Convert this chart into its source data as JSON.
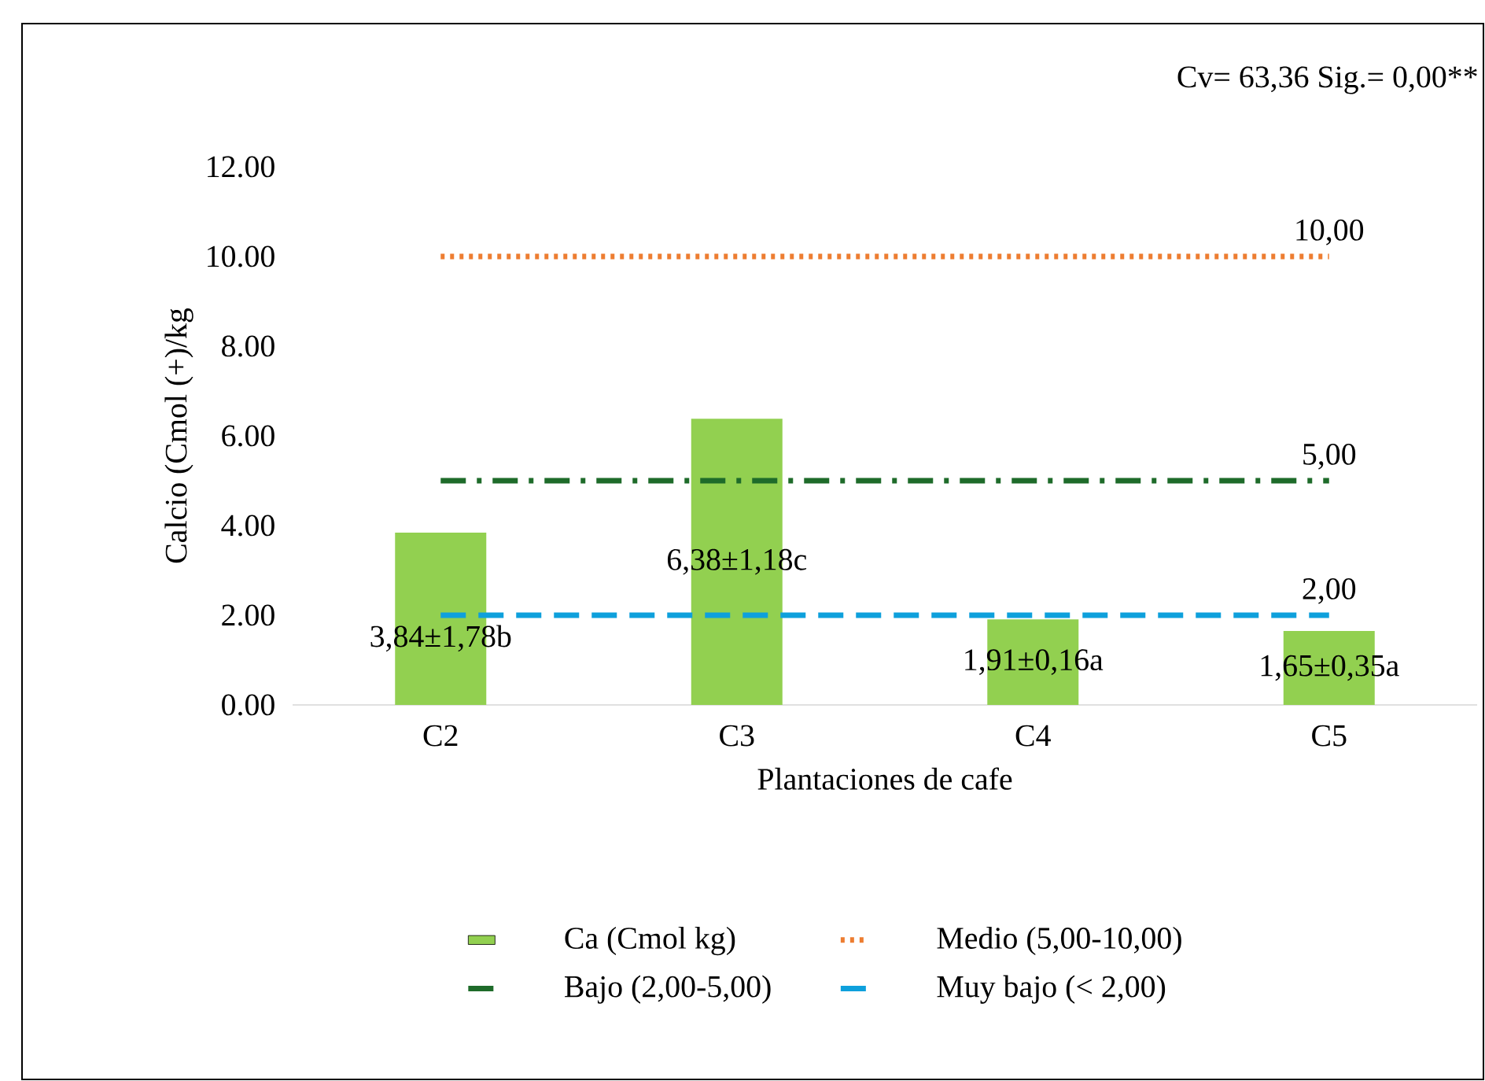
{
  "chart_data": {
    "type": "bar",
    "ylabel": "Calcio (Cmol (+)/kg",
    "xlabel": "Plantaciones de cafe",
    "categories": [
      "C2",
      "C3",
      "C4",
      "C5"
    ],
    "ylim": [
      0,
      12
    ],
    "yticks": [
      {
        "value": 0,
        "label": "0.00"
      },
      {
        "value": 2,
        "label": "2.00"
      },
      {
        "value": 4,
        "label": "4.00"
      },
      {
        "value": 6,
        "label": "6.00"
      },
      {
        "value": 8,
        "label": "8.00"
      },
      {
        "value": 10,
        "label": "10.00"
      },
      {
        "value": 12,
        "label": "12.00"
      }
    ],
    "series": [
      {
        "name": "Ca (Cmol kg)",
        "color": "#92d050",
        "values": [
          3.84,
          6.38,
          1.91,
          1.65
        ],
        "value_labels": [
          "3,84±1,78b",
          "6,38±1,18c",
          "1,91±0,16a",
          "1,65±0,35a"
        ]
      },
      {
        "name": "Medio (5,00-10,00)",
        "type": "line",
        "line_style": "dotted",
        "color": "#ed7d31",
        "values": [
          10,
          10,
          10,
          10
        ],
        "value_labels": [
          null,
          null,
          null,
          "10,00"
        ]
      },
      {
        "name": "Bajo (2,00-5,00)",
        "type": "line",
        "line_style": "dashdot",
        "color": "#1e6b2a",
        "values": [
          5,
          5,
          5,
          5
        ],
        "value_labels": [
          null,
          null,
          null,
          "5,00"
        ]
      },
      {
        "name": "Muy bajo (< 2,00)",
        "type": "line",
        "line_style": "dashed",
        "color": "#0ea0dc",
        "values": [
          2,
          2,
          2,
          2
        ],
        "value_labels": [
          null,
          null,
          null,
          "2,00"
        ]
      }
    ],
    "annotations": [
      "Cv= 63,36  Sig.= 0,00**"
    ],
    "legend": "bottom"
  }
}
